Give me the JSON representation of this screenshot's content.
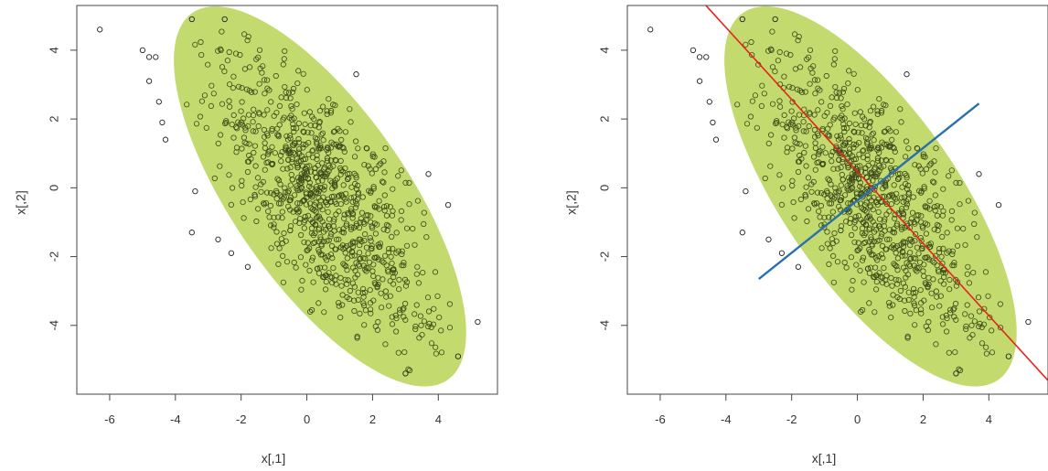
{
  "chart_data": [
    {
      "type": "scatter",
      "xlabel": "x[,1]",
      "ylabel": "x[,2]",
      "xlim": [
        -7,
        5.8
      ],
      "ylim": [
        -6,
        5.3
      ],
      "xticks": [
        -6,
        -4,
        -2,
        0,
        2,
        4
      ],
      "yticks": [
        -4,
        -2,
        0,
        2,
        4
      ],
      "xtick_labels": [
        "-6",
        "-4",
        "-2",
        "0",
        "2",
        "4"
      ],
      "ytick_labels": [
        "-4",
        "-2",
        "0",
        "2",
        "4"
      ],
      "grid": false,
      "ellipse": {
        "cx": 0.4,
        "cy": -0.25,
        "semi_major": 6.6,
        "semi_minor": 2.6,
        "angle_deg": -53.5,
        "fill": "#c2da6e"
      },
      "point_color": "#3d4a1a",
      "outlier_points": [
        [
          -6.3,
          4.6
        ],
        [
          -5.0,
          4.0
        ],
        [
          -4.8,
          3.8
        ],
        [
          -4.6,
          3.8
        ],
        [
          -4.8,
          3.1
        ],
        [
          -4.5,
          2.5
        ],
        [
          -4.4,
          1.9
        ],
        [
          -4.3,
          1.4
        ],
        [
          -3.5,
          4.9
        ],
        [
          -2.5,
          4.9
        ],
        [
          -3.4,
          -0.1
        ],
        [
          -3.5,
          -1.3
        ],
        [
          -2.7,
          -1.5
        ],
        [
          -2.3,
          -1.9
        ],
        [
          -1.8,
          -2.3
        ],
        [
          1.5,
          3.3
        ],
        [
          3.7,
          0.4
        ],
        [
          4.3,
          -0.5
        ],
        [
          3.0,
          -5.4
        ],
        [
          5.2,
          -3.9
        ],
        [
          4.6,
          -4.9
        ]
      ],
      "cluster_point_count": 900,
      "lines": []
    },
    {
      "type": "scatter",
      "xlabel": "x[,1]",
      "ylabel": "x[,2]",
      "xlim": [
        -7,
        5.8
      ],
      "ylim": [
        -6,
        5.3
      ],
      "xticks": [
        -6,
        -4,
        -2,
        0,
        2,
        4
      ],
      "yticks": [
        -4,
        -2,
        0,
        2,
        4
      ],
      "xtick_labels": [
        "-6",
        "-4",
        "-2",
        "0",
        "2",
        "4"
      ],
      "ytick_labels": [
        "-4",
        "-2",
        "0",
        "2",
        "4"
      ],
      "grid": false,
      "ellipse": {
        "cx": 0.4,
        "cy": -0.25,
        "semi_major": 6.6,
        "semi_minor": 2.6,
        "angle_deg": -53.5,
        "fill": "#c2da6e"
      },
      "point_color": "#3d4a1a",
      "outlier_points": [
        [
          -6.3,
          4.6
        ],
        [
          -5.0,
          4.0
        ],
        [
          -4.8,
          3.8
        ],
        [
          -4.6,
          3.8
        ],
        [
          -4.8,
          3.1
        ],
        [
          -4.5,
          2.5
        ],
        [
          -4.4,
          1.9
        ],
        [
          -4.3,
          1.4
        ],
        [
          -3.5,
          4.9
        ],
        [
          -2.5,
          4.9
        ],
        [
          -3.4,
          -0.1
        ],
        [
          -3.5,
          -1.3
        ],
        [
          -2.7,
          -1.5
        ],
        [
          -2.3,
          -1.9
        ],
        [
          -1.8,
          -2.3
        ],
        [
          1.5,
          3.3
        ],
        [
          3.7,
          0.4
        ],
        [
          4.3,
          -0.5
        ],
        [
          3.0,
          -5.4
        ],
        [
          5.2,
          -3.9
        ],
        [
          4.6,
          -4.9
        ]
      ],
      "cluster_point_count": 900,
      "lines": [
        {
          "from": [
            -4.8,
            5.5
          ],
          "to": [
            5.8,
            -5.6
          ],
          "color": "#e8231d"
        },
        {
          "from": [
            -3.0,
            -2.65
          ],
          "to": [
            3.7,
            2.45
          ],
          "color": "#2a6fb0"
        }
      ]
    }
  ]
}
